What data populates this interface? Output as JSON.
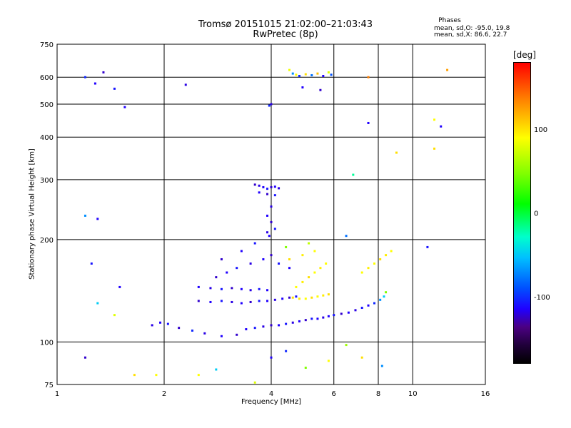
{
  "chart_data": {
    "type": "scatter",
    "title": "Tromsø 20151015 21:02:00–21:03:43",
    "subtitle": "RwPretec (8p)",
    "xlabel": "Frequency [MHz]",
    "ylabel": "Stationary phase Virtual Height [km]",
    "x_scale": "log",
    "y_scale": "log",
    "xlim": [
      1,
      16
    ],
    "ylim": [
      75,
      750
    ],
    "x_ticks": [
      "1",
      "2",
      "4",
      "6",
      "8",
      "10",
      "16"
    ],
    "x_tick_values": [
      1,
      2,
      4,
      6,
      8,
      10,
      16
    ],
    "y_ticks": [
      "75",
      "100",
      "200",
      "300",
      "400",
      "500",
      "600",
      "750"
    ],
    "y_tick_values": [
      75,
      100,
      200,
      300,
      400,
      500,
      600,
      750
    ],
    "grid": true,
    "colorbar": {
      "unit": "[deg]",
      "ticks": [
        "100",
        "0",
        "-100"
      ],
      "tick_values": [
        100,
        0,
        -100
      ],
      "range": [
        -180,
        180
      ]
    },
    "phases_box": {
      "heading": "Phases",
      "line_o": "mean, sd,O: -95.0, 19.8",
      "line_x": "mean, sd,X:  86.6, 22.7"
    },
    "series": [
      {
        "points": [
          [
            1.85,
            112,
            -105
          ],
          [
            1.95,
            114,
            -100
          ],
          [
            2.05,
            113,
            -95
          ],
          [
            2.2,
            110,
            -110
          ],
          [
            2.4,
            108,
            -90
          ],
          [
            2.6,
            106,
            -105
          ],
          [
            2.9,
            104,
            -100
          ],
          [
            3.2,
            105,
            -110
          ],
          [
            3.4,
            109,
            -100
          ],
          [
            3.6,
            110,
            -95
          ],
          [
            3.8,
            111,
            -105
          ],
          [
            4.0,
            112,
            -110
          ],
          [
            4.2,
            112,
            -100
          ],
          [
            4.4,
            113,
            -95
          ],
          [
            4.6,
            114,
            -105
          ],
          [
            4.8,
            115,
            -100
          ],
          [
            5.0,
            116,
            -110
          ],
          [
            5.2,
            117,
            -95
          ],
          [
            5.4,
            117,
            -100
          ],
          [
            5.6,
            118,
            -105
          ],
          [
            5.8,
            119,
            -100
          ],
          [
            6.0,
            120,
            -95
          ],
          [
            6.3,
            121,
            -110
          ],
          [
            6.6,
            122,
            -100
          ],
          [
            6.9,
            124,
            -105
          ],
          [
            7.2,
            126,
            -95
          ],
          [
            7.5,
            128,
            -100
          ],
          [
            7.8,
            130,
            -90
          ],
          [
            8.1,
            133,
            -60
          ],
          [
            8.3,
            136,
            -40
          ],
          [
            8.4,
            140,
            60
          ]
        ]
      },
      {
        "points": [
          [
            2.5,
            132,
            -110
          ],
          [
            2.7,
            131,
            -100
          ],
          [
            2.9,
            132,
            -95
          ],
          [
            3.1,
            131,
            -105
          ],
          [
            3.3,
            130,
            -100
          ],
          [
            3.5,
            131,
            -110
          ],
          [
            3.7,
            132,
            -95
          ],
          [
            3.9,
            132,
            -100
          ],
          [
            4.1,
            133,
            -105
          ],
          [
            4.3,
            134,
            -100
          ],
          [
            4.5,
            135,
            -110
          ],
          [
            4.7,
            136,
            -95
          ]
        ]
      },
      {
        "points": [
          [
            2.5,
            145,
            -100
          ],
          [
            2.7,
            144,
            -105
          ],
          [
            2.9,
            143,
            -95
          ],
          [
            3.1,
            144,
            -110
          ],
          [
            3.3,
            143,
            -100
          ],
          [
            3.5,
            142,
            -105
          ],
          [
            3.7,
            143,
            -95
          ],
          [
            3.9,
            142,
            -100
          ],
          [
            2.8,
            155,
            -110
          ],
          [
            3.0,
            160,
            -100
          ],
          [
            3.2,
            165,
            -95
          ],
          [
            3.5,
            170,
            -105
          ],
          [
            3.8,
            175,
            -100
          ],
          [
            4.0,
            180,
            -110
          ],
          [
            4.2,
            170,
            -95
          ],
          [
            4.5,
            165,
            -100
          ],
          [
            2.9,
            175,
            -110
          ],
          [
            3.3,
            185,
            -100
          ],
          [
            3.6,
            195,
            -95
          ],
          [
            3.9,
            210,
            -105
          ]
        ]
      },
      {
        "points": [
          [
            4.6,
            135,
            110
          ],
          [
            4.8,
            134,
            105
          ],
          [
            5.0,
            134,
            100
          ],
          [
            5.2,
            135,
            110
          ],
          [
            5.4,
            136,
            100
          ],
          [
            5.6,
            137,
            105
          ],
          [
            5.8,
            138,
            110
          ],
          [
            4.7,
            145,
            100
          ],
          [
            4.9,
            150,
            105
          ],
          [
            5.1,
            155,
            110
          ],
          [
            5.3,
            160,
            100
          ],
          [
            5.5,
            165,
            105
          ],
          [
            5.7,
            170,
            100
          ],
          [
            4.5,
            175,
            110
          ],
          [
            4.9,
            180,
            105
          ],
          [
            5.3,
            185,
            100
          ],
          [
            4.4,
            190,
            60
          ],
          [
            5.1,
            195,
            80
          ],
          [
            7.2,
            160,
            100
          ],
          [
            7.5,
            165,
            105
          ],
          [
            7.8,
            170,
            100
          ],
          [
            8.1,
            175,
            110
          ],
          [
            8.4,
            180,
            105
          ],
          [
            8.7,
            185,
            100
          ]
        ]
      },
      {
        "points": [
          [
            3.6,
            290,
            -110
          ],
          [
            3.7,
            288,
            -105
          ],
          [
            3.8,
            285,
            -100
          ],
          [
            3.9,
            282,
            -95
          ],
          [
            4.0,
            285,
            -110
          ],
          [
            4.1,
            286,
            -100
          ],
          [
            4.2,
            283,
            -105
          ],
          [
            3.7,
            275,
            -100
          ],
          [
            3.9,
            272,
            -110
          ],
          [
            4.1,
            270,
            -95
          ],
          [
            4.0,
            250,
            -105
          ],
          [
            3.9,
            235,
            -100
          ],
          [
            4.0,
            225,
            -110
          ],
          [
            4.1,
            215,
            -95
          ],
          [
            3.95,
            205,
            -100
          ]
        ]
      },
      {
        "points": [
          [
            4.5,
            630,
            95
          ],
          [
            4.6,
            615,
            -60
          ],
          [
            4.7,
            610,
            100
          ],
          [
            4.8,
            605,
            -90
          ],
          [
            5.0,
            612,
            110
          ],
          [
            5.2,
            608,
            -70
          ],
          [
            5.4,
            615,
            120
          ],
          [
            5.6,
            605,
            -100
          ],
          [
            5.8,
            620,
            90
          ],
          [
            5.9,
            610,
            -80
          ],
          [
            4.9,
            560,
            -100
          ],
          [
            5.5,
            550,
            -110
          ],
          [
            4.0,
            500,
            -105
          ],
          [
            3.95,
            495,
            -90
          ]
        ]
      },
      {
        "points": [
          [
            1.2,
            600,
            -90
          ],
          [
            1.28,
            575,
            -100
          ],
          [
            1.35,
            620,
            -110
          ],
          [
            1.45,
            555,
            -95
          ],
          [
            1.55,
            490,
            -100
          ],
          [
            2.3,
            570,
            -105
          ],
          [
            1.2,
            235,
            -60
          ],
          [
            1.3,
            230,
            -100
          ],
          [
            1.25,
            170,
            -95
          ],
          [
            1.5,
            145,
            -100
          ],
          [
            1.3,
            130,
            -40
          ],
          [
            1.45,
            120,
            90
          ],
          [
            1.2,
            90,
            -110
          ],
          [
            1.65,
            80,
            110
          ],
          [
            1.9,
            80,
            100
          ],
          [
            2.5,
            80,
            100
          ],
          [
            2.8,
            83,
            -40
          ],
          [
            3.6,
            76,
            90
          ],
          [
            4.0,
            90,
            -100
          ],
          [
            4.4,
            94,
            -90
          ],
          [
            5.0,
            84,
            60
          ],
          [
            5.8,
            88,
            100
          ],
          [
            6.5,
            98,
            70
          ],
          [
            7.2,
            90,
            110
          ],
          [
            8.2,
            85,
            -60
          ],
          [
            7.5,
            440,
            -100
          ],
          [
            9.0,
            360,
            110
          ],
          [
            11.5,
            450,
            100
          ],
          [
            12.0,
            430,
            -100
          ],
          [
            11.5,
            370,
            110
          ],
          [
            12.5,
            630,
            130
          ],
          [
            11.0,
            190,
            -95
          ],
          [
            7.5,
            600,
            140
          ],
          [
            6.8,
            310,
            -10
          ],
          [
            6.5,
            205,
            -70
          ]
        ]
      }
    ]
  }
}
